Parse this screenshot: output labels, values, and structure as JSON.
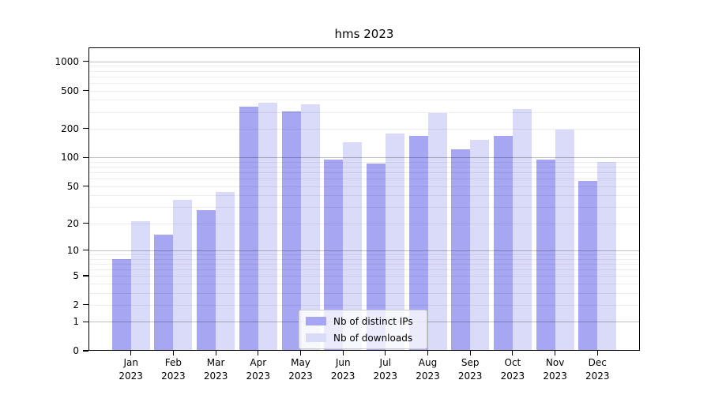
{
  "title": "hms 2023",
  "chart_data": {
    "type": "bar",
    "title": "hms 2023",
    "categories": [
      "Jan 2023",
      "Feb 2023",
      "Mar 2023",
      "Apr 2023",
      "May 2023",
      "Jun 2023",
      "Jul 2023",
      "Aug 2023",
      "Sep 2023",
      "Oct 2023",
      "Nov 2023",
      "Dec 2023"
    ],
    "series": [
      {
        "name": "Nb of distinct IPs",
        "color": "#a6a6f3",
        "values": [
          8,
          15,
          28,
          337,
          302,
          95,
          86,
          168,
          121,
          170,
          95,
          57
        ]
      },
      {
        "name": "Nb of downloads",
        "color": "#dadaf9",
        "values": [
          21,
          36,
          43,
          370,
          357,
          144,
          180,
          290,
          154,
          322,
          197,
          90
        ]
      }
    ],
    "xlabel": "",
    "ylabel": "",
    "yscale": "log1p",
    "ylim": [
      0,
      1400
    ],
    "yticks": [
      1000,
      500,
      200,
      100,
      50,
      20,
      10,
      5,
      2,
      1,
      0
    ],
    "grid": {
      "major": [
        1,
        10,
        100,
        1000
      ],
      "minor": [
        2,
        3,
        4,
        5,
        6,
        7,
        8,
        9,
        20,
        30,
        40,
        50,
        60,
        70,
        80,
        90,
        200,
        300,
        400,
        500,
        600,
        700,
        800,
        900
      ]
    },
    "legend_position": "lower center",
    "grid_on": true
  },
  "colors": {
    "background": "#ffffff",
    "axis": "#000000",
    "grid_major": "rgba(0,0,0,0.25)",
    "grid_minor": "rgba(0,0,0,0.065)",
    "legend_border": "#cccccc",
    "legend_background": "rgba(255,255,255,0.78)"
  }
}
